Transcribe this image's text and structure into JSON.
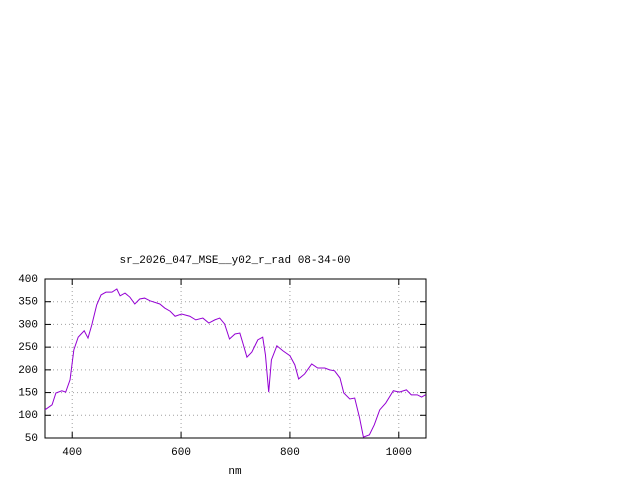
{
  "chart_data": {
    "type": "line",
    "title": "sr_2026_047_MSE__y02_r_rad 08-34-00",
    "x_label": "nm",
    "xlim": [
      350,
      1050
    ],
    "xticks": [
      400,
      600,
      800,
      1000
    ],
    "ylim": [
      50,
      400
    ],
    "yticks": [
      50,
      100,
      150,
      200,
      250,
      300,
      350,
      400
    ],
    "grid": true,
    "series": [
      {
        "color": "#9400d3",
        "x": [
          350,
          363,
          370,
          381,
          388,
          396,
          403,
          411,
          422,
          429,
          436,
          445,
          453,
          462,
          473,
          482,
          488,
          497,
          506,
          515,
          524,
          533,
          543,
          561,
          570,
          580,
          589,
          601,
          616,
          627,
          640,
          651,
          662,
          671,
          680,
          689,
          699,
          708,
          713,
          721,
          730,
          741,
          750,
          755,
          761,
          766,
          776,
          787,
          800,
          809,
          816,
          827,
          840,
          851,
          864,
          873,
          882,
          892,
          899,
          910,
          919,
          928,
          935,
          946,
          955,
          965,
          976,
          990,
          1001,
          1014,
          1023,
          1034,
          1042,
          1049
        ],
        "values": [
          112,
          123,
          149,
          154,
          151,
          178,
          244,
          272,
          286,
          270,
          299,
          343,
          365,
          371,
          371,
          378,
          363,
          369,
          360,
          345,
          356,
          358,
          352,
          345,
          336,
          329,
          318,
          323,
          318,
          310,
          314,
          303,
          310,
          314,
          301,
          268,
          279,
          281,
          261,
          228,
          239,
          266,
          272,
          233,
          151,
          222,
          253,
          242,
          231,
          211,
          180,
          191,
          213,
          204,
          204,
          200,
          198,
          182,
          149,
          136,
          138,
          94,
          52,
          57,
          79,
          112,
          127,
          154,
          151,
          156,
          145,
          145,
          140,
          145
        ]
      }
    ]
  }
}
